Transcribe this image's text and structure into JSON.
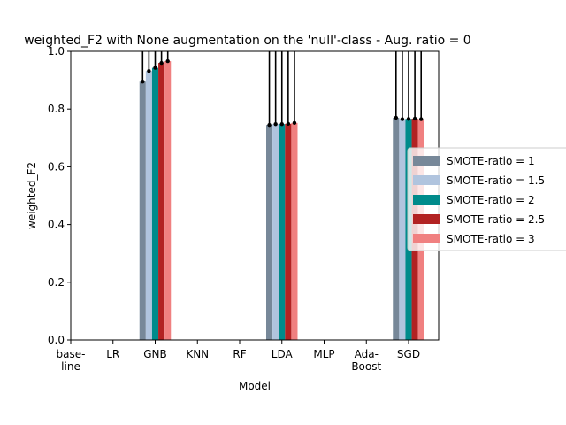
{
  "chart_data": {
    "type": "bar",
    "title": "weighted_F2 with None augmentation on the 'null'-class - Aug. ratio = 0",
    "xlabel": "Model",
    "ylabel": "weighted_F2",
    "ylim": [
      0,
      1.0
    ],
    "yticks": [
      "0.0",
      "0.2",
      "0.4",
      "0.6",
      "0.8",
      "1.0"
    ],
    "categories": [
      "base-\nline",
      "LR",
      "GNB",
      "KNN",
      "RF",
      "LDA",
      "MLP",
      "Ada-\nBoost",
      "SGD"
    ],
    "legend_position": "center-right",
    "series": [
      {
        "name": "SMOTE-ratio = 1",
        "color": "#778899",
        "values": [
          null,
          null,
          0.895,
          null,
          null,
          0.745,
          null,
          null,
          0.77
        ]
      },
      {
        "name": "SMOTE-ratio = 1.5",
        "color": "#b0c4de",
        "values": [
          null,
          null,
          0.932,
          null,
          null,
          0.748,
          null,
          null,
          0.765
        ]
      },
      {
        "name": "SMOTE-ratio = 2",
        "color": "#008b8b",
        "values": [
          null,
          null,
          0.943,
          null,
          null,
          0.748,
          null,
          null,
          0.766
        ]
      },
      {
        "name": "SMOTE-ratio = 2.5",
        "color": "#b22222",
        "values": [
          null,
          null,
          0.96,
          null,
          null,
          0.749,
          null,
          null,
          0.767
        ]
      },
      {
        "name": "SMOTE-ratio = 3",
        "color": "#f08080",
        "values": [
          null,
          null,
          0.966,
          null,
          null,
          0.752,
          null,
          null,
          0.765
        ]
      }
    ],
    "error_upper": 1.0,
    "grid": false
  }
}
